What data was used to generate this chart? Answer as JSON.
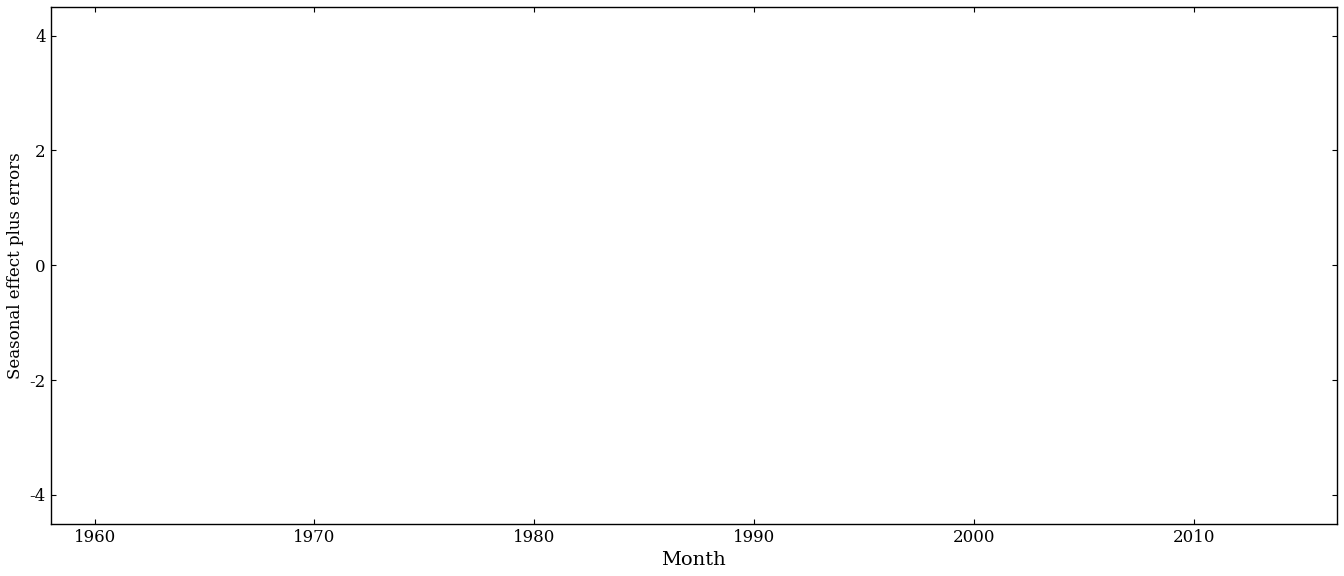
{
  "title": "",
  "xlabel": "Month",
  "ylabel": "Seasonal effect plus errors",
  "xlim_start": 1958.0,
  "xlim_end": 2016.5,
  "ylim": [
    -4.5,
    4.5
  ],
  "yticks": [
    -4,
    -2,
    0,
    2,
    4
  ],
  "xticks": [
    1960,
    1970,
    1980,
    1990,
    2000,
    2010
  ],
  "line_color": "#000000",
  "line_width": 0.8,
  "background_color": "#ffffff",
  "font_family": "serif"
}
